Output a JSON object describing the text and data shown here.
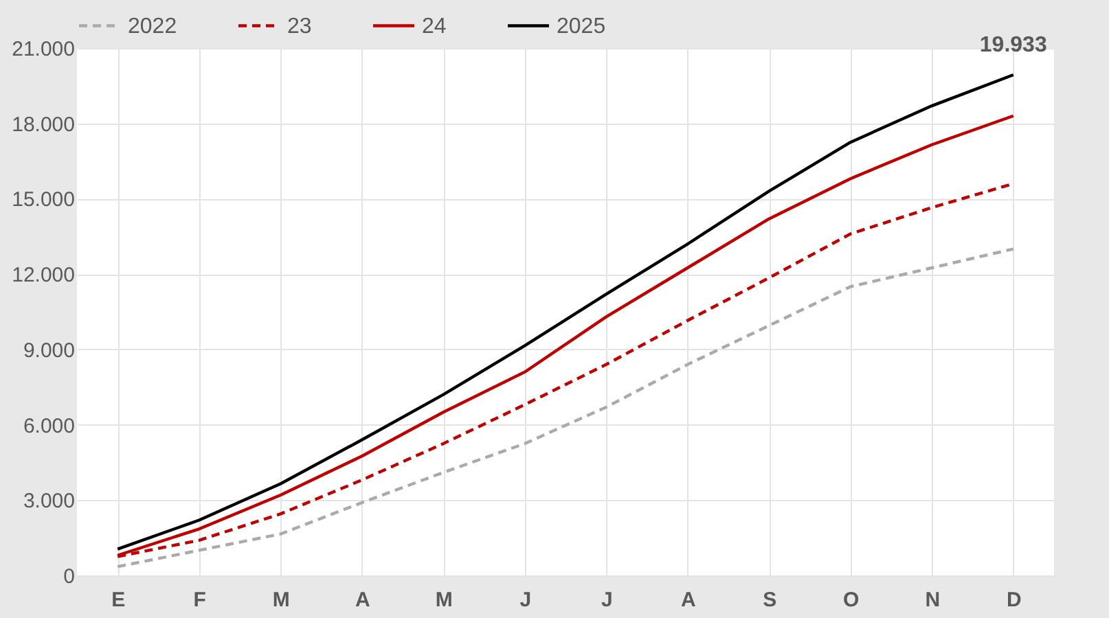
{
  "chart_data": {
    "type": "line",
    "categories": [
      "E",
      "F",
      "M",
      "A",
      "M",
      "J",
      "J",
      "A",
      "S",
      "O",
      "N",
      "D"
    ],
    "series": [
      {
        "name": "2022",
        "color": "#aaaaaa",
        "line_style": "dashed",
        "values": [
          350,
          1000,
          1650,
          2900,
          4100,
          5250,
          6700,
          8400,
          9950,
          11500,
          12250,
          13000
        ]
      },
      {
        "name": "23",
        "color": "#c00000",
        "line_style": "dashed",
        "values": [
          750,
          1400,
          2450,
          3800,
          5250,
          6800,
          8400,
          10150,
          11850,
          13600,
          14650,
          15600
        ]
      },
      {
        "name": "24",
        "color": "#c00000",
        "line_style": "solid",
        "values": [
          800,
          1850,
          3200,
          4750,
          6500,
          8100,
          10300,
          12250,
          14200,
          15800,
          17150,
          18300
        ]
      },
      {
        "name": "2025",
        "color": "#000000",
        "line_style": "solid",
        "values": [
          1050,
          2200,
          3650,
          5400,
          7200,
          9150,
          11200,
          13200,
          15300,
          17250,
          18700,
          19933
        ]
      }
    ],
    "annotations": [
      {
        "text": "19.933",
        "x": "D",
        "y": 19933
      }
    ],
    "ylim": [
      0,
      21000
    ],
    "yticks": [
      0,
      {
        "value": 3000,
        "label": "3.000"
      },
      {
        "value": 6000,
        "label": "6.000"
      },
      {
        "value": 9000,
        "label": "9.000"
      },
      {
        "value": 12000,
        "label": "12.000"
      },
      {
        "value": 15000,
        "label": "15.000"
      },
      {
        "value": 18000,
        "label": "18.000"
      },
      {
        "value": 21000,
        "label": "21.000"
      }
    ],
    "grid": true,
    "legend": "top",
    "marker": "none"
  }
}
